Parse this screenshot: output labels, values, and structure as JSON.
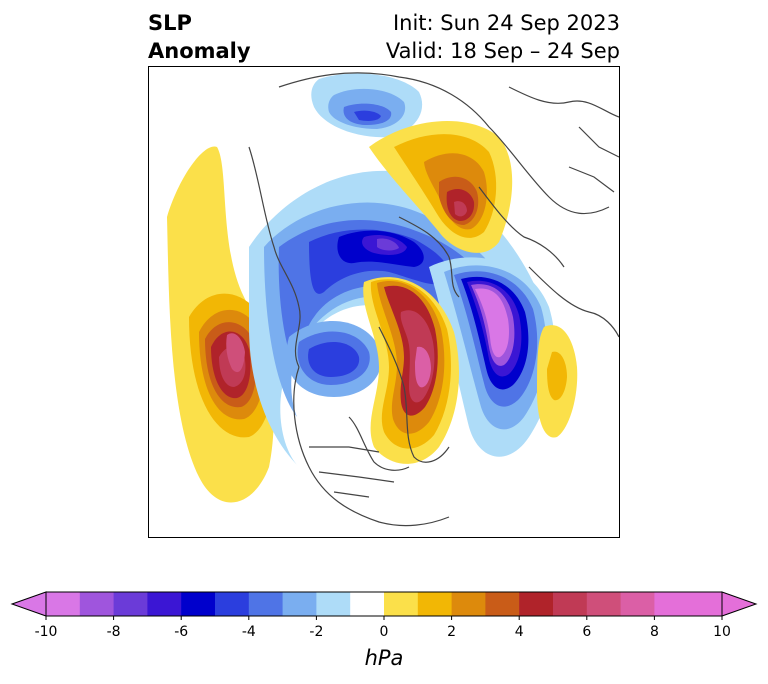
{
  "title": {
    "left_line1": "SLP",
    "left_line2": "Anomaly",
    "right_line1": "Init: Sun 24 Sep 2023",
    "right_line2": "Valid: 18 Sep – 24 Sep"
  },
  "colorbar": {
    "unit": "hPa",
    "ticks": [
      "-10",
      "-8",
      "-6",
      "-4",
      "-2",
      "0",
      "2",
      "4",
      "6",
      "8",
      "10"
    ],
    "under_color": "#d977e6",
    "over_color": "#e46fd9",
    "colors": [
      "#d977e6",
      "#9f55dd",
      "#6b3bd8",
      "#3b16d4",
      "#0000cc",
      "#2b3ede",
      "#4f74e6",
      "#7aaef0",
      "#aedcf8",
      "#ffffff",
      "#fbe04a",
      "#f2b705",
      "#dd8a0c",
      "#c95c18",
      "#b0232a",
      "#c03a55",
      "#cf4f7a",
      "#db5fa6",
      "#e46fd9"
    ]
  },
  "palette": {
    "neg1": "#aedcf8",
    "neg2": "#7aaef0",
    "neg3": "#4f74e6",
    "neg4": "#2b3ede",
    "neg5": "#0000cc",
    "neg6": "#3b16d4",
    "neg7": "#6b3bd8",
    "neg8": "#9f55dd",
    "neg9": "#d977e6",
    "pos1": "#fbe04a",
    "pos2": "#f2b705",
    "pos3": "#dd8a0c",
    "pos4": "#c95c18",
    "pos5": "#b0232a",
    "pos6": "#c03a55",
    "pos7": "#cf4f7a",
    "pos8": "#db5fa6",
    "coast": "#444444"
  }
}
